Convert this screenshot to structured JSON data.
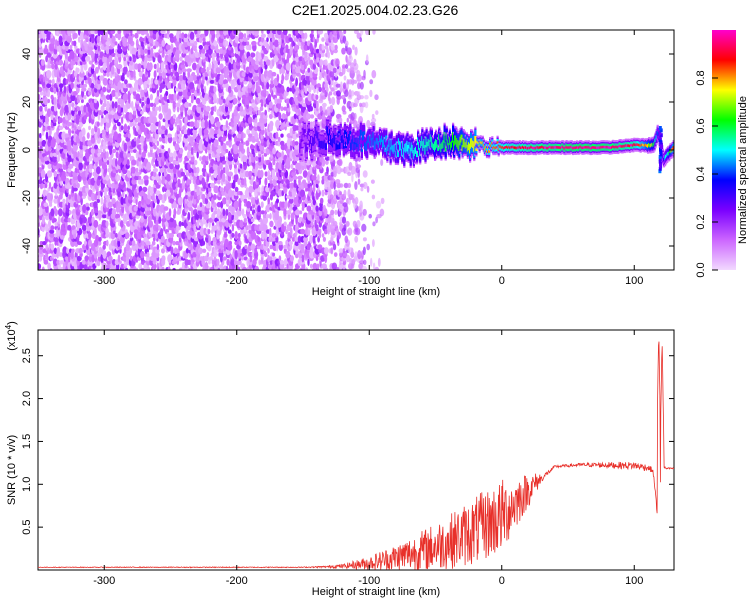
{
  "title": "C2E1.2025.004.02.23.G26",
  "chart_data": [
    {
      "type": "heatmap",
      "xlabel": "Height of straight line (km)",
      "ylabel": "Frequency (Hz)",
      "xlim": [
        -350,
        130
      ],
      "ylim": [
        -50,
        50
      ],
      "xticks": [
        -300,
        -200,
        -100,
        0,
        100
      ],
      "yticks": [
        -40,
        -20,
        0,
        20,
        40
      ],
      "colorbar": {
        "label": "Normalized spectral amplitude",
        "range": [
          0.0,
          1.0
        ],
        "ticks": [
          "0.0",
          "0.2",
          "0.4",
          "0.6",
          "0.8"
        ],
        "tick_values": [
          0.0,
          0.2,
          0.4,
          0.6,
          0.8
        ],
        "colors": [
          "#f2d9ff",
          "#cc66ff",
          "#7a00ff",
          "#0000ff",
          "#00ffff",
          "#00ff00",
          "#ffff00",
          "#ff0000",
          "#ff00cc"
        ]
      },
      "noise_region_x": [
        -350,
        -120
      ],
      "ridge": {
        "x": [
          -150,
          -130,
          -110,
          -90,
          -70,
          -50,
          -40,
          -20,
          0,
          20,
          50,
          80,
          100,
          115,
          118,
          122,
          130
        ],
        "frequency": [
          4,
          5,
          4,
          2,
          0,
          3,
          4,
          2,
          1,
          1,
          1,
          1,
          2,
          2,
          8,
          -4,
          1
        ],
        "amplitude": [
          0.25,
          0.35,
          0.4,
          0.45,
          0.5,
          0.55,
          0.6,
          0.75,
          0.85,
          0.9,
          0.95,
          0.95,
          0.9,
          0.6,
          0.4,
          0.3,
          0.8
        ]
      }
    },
    {
      "type": "line",
      "xlabel": "Height of straight line (km)",
      "ylabel": "SNR (10 * v/v)",
      "multiplier": "(x10",
      "multiplier_exp": "4",
      "multiplier_close": ")",
      "xlim": [
        -350,
        130
      ],
      "ylim": [
        0,
        28000
      ],
      "xticks": [
        -300,
        -200,
        -100,
        0,
        100
      ],
      "yticks": [
        5000,
        10000,
        15000,
        20000,
        25000
      ],
      "ytick_labels": [
        "0.5",
        "1.0",
        "1.5",
        "2.0",
        "2.5"
      ],
      "color": "#e8302a",
      "envelope": {
        "x": [
          -350,
          -150,
          -120,
          -100,
          -80,
          -60,
          -40,
          -20,
          0,
          10,
          20,
          30,
          40,
          60,
          80,
          100,
          110,
          114,
          116,
          118,
          120,
          122,
          124,
          130
        ],
        "baseline": [
          300,
          300,
          350,
          500,
          800,
          1300,
          2000,
          3000,
          4500,
          6500,
          8500,
          10500,
          12000,
          12200,
          12100,
          12000,
          11800,
          11500,
          9000,
          5000,
          11000,
          12000,
          11800,
          11800
        ],
        "spread": [
          80,
          100,
          300,
          1000,
          2000,
          3000,
          4000,
          5000,
          5500,
          4000,
          2500,
          800,
          300,
          400,
          700,
          900,
          800,
          600,
          500,
          300,
          400,
          300,
          200,
          200
        ]
      },
      "spikes": [
        {
          "x": 118.5,
          "y": 28000
        },
        {
          "x": 121,
          "y": 27000
        }
      ]
    }
  ]
}
